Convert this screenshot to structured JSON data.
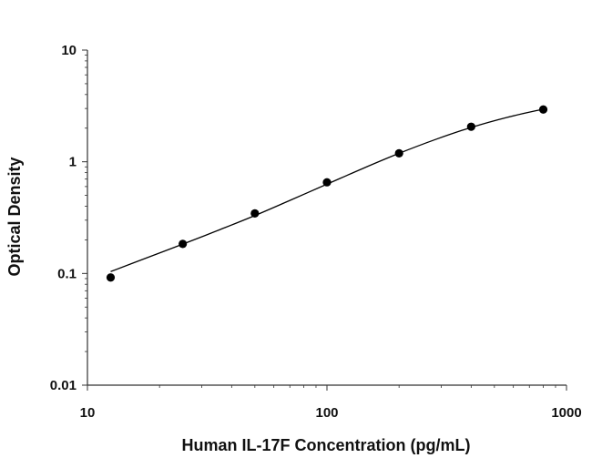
{
  "chart_data": {
    "type": "scatter",
    "title": "",
    "xlabel": "Human IL-17F Concentration (pg/mL)",
    "ylabel": "Optical Density",
    "x_scale": "log",
    "y_scale": "log",
    "xlim": [
      10,
      1000
    ],
    "ylim": [
      0.01,
      10
    ],
    "x_ticks": [
      "10",
      "100",
      "1000"
    ],
    "y_ticks": [
      "0.01",
      "0.1",
      "1",
      "10"
    ],
    "grid": false,
    "legend": "none",
    "series": [
      {
        "points": [
          {
            "x": 12.5,
            "y": 0.092
          },
          {
            "x": 25,
            "y": 0.184
          },
          {
            "x": 50,
            "y": 0.345
          },
          {
            "x": 100,
            "y": 0.655
          },
          {
            "x": 200,
            "y": 1.19
          },
          {
            "x": 400,
            "y": 2.06
          },
          {
            "x": 800,
            "y": 2.94
          }
        ],
        "fit_curve": [
          {
            "x": 12.5,
            "y": 0.104
          },
          {
            "x": 17.7,
            "y": 0.138
          },
          {
            "x": 25,
            "y": 0.183
          },
          {
            "x": 35.4,
            "y": 0.245
          },
          {
            "x": 50,
            "y": 0.33
          },
          {
            "x": 70.7,
            "y": 0.455
          },
          {
            "x": 100,
            "y": 0.63
          },
          {
            "x": 141,
            "y": 0.87
          },
          {
            "x": 200,
            "y": 1.19
          },
          {
            "x": 283,
            "y": 1.58
          },
          {
            "x": 400,
            "y": 2.03
          },
          {
            "x": 566,
            "y": 2.5
          },
          {
            "x": 800,
            "y": 2.96
          }
        ]
      }
    ],
    "colors": {
      "marker": "#000000",
      "line": "#000000",
      "axis": "#333333"
    }
  }
}
